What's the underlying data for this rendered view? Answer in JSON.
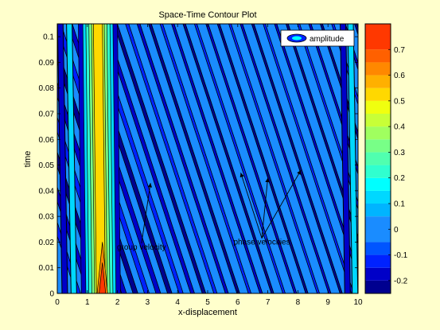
{
  "chart_data": {
    "type": "contour",
    "title": "Space-Time Contour Plot",
    "xlabel": "x-displacement",
    "ylabel": "time",
    "xlim": [
      0,
      10
    ],
    "ylim": [
      0,
      0.105
    ],
    "x_ticks": [
      "0",
      "1",
      "2",
      "3",
      "4",
      "5",
      "6",
      "7",
      "8",
      "9",
      "10"
    ],
    "y_ticks": [
      "0",
      "0.01",
      "0.02",
      "0.03",
      "0.04",
      "0.05",
      "0.06",
      "0.07",
      "0.08",
      "0.09",
      "0.1"
    ],
    "legend": {
      "entries": [
        "amplitude"
      ],
      "placement": "top-right"
    },
    "colorbar": {
      "ticks": [
        "-0.2",
        "-0.1",
        "0",
        "0.1",
        "0.2",
        "0.3",
        "0.4",
        "0.5",
        "0.6",
        "0.7"
      ],
      "range": [
        -0.25,
        0.8
      ],
      "levels": [
        {
          "from": -0.25,
          "to": -0.2,
          "color": "#00008f"
        },
        {
          "from": -0.2,
          "to": -0.15,
          "color": "#0000c8"
        },
        {
          "from": -0.15,
          "to": -0.1,
          "color": "#0022ff"
        },
        {
          "from": -0.1,
          "to": -0.05,
          "color": "#0055ff"
        },
        {
          "from": -0.05,
          "to": 0.05,
          "color": "#1a8cff"
        },
        {
          "from": 0.05,
          "to": 0.1,
          "color": "#00b4ff"
        },
        {
          "from": 0.1,
          "to": 0.15,
          "color": "#00d8ff"
        },
        {
          "from": 0.15,
          "to": 0.2,
          "color": "#00ffff"
        },
        {
          "from": 0.2,
          "to": 0.25,
          "color": "#30ffcf"
        },
        {
          "from": 0.25,
          "to": 0.3,
          "color": "#50ffaf"
        },
        {
          "from": 0.3,
          "to": 0.35,
          "color": "#78ff87"
        },
        {
          "from": 0.35,
          "to": 0.4,
          "color": "#a0ff5f"
        },
        {
          "from": 0.4,
          "to": 0.45,
          "color": "#c8ff37"
        },
        {
          "from": 0.45,
          "to": 0.5,
          "color": "#f0ff0f"
        },
        {
          "from": 0.5,
          "to": 0.55,
          "color": "#ffd800"
        },
        {
          "from": 0.55,
          "to": 0.6,
          "color": "#ffb000"
        },
        {
          "from": 0.6,
          "to": 0.65,
          "color": "#ff8800"
        },
        {
          "from": 0.65,
          "to": 0.7,
          "color": "#ff6000"
        },
        {
          "from": 0.7,
          "to": 0.8,
          "color": "#ff3800"
        }
      ]
    },
    "annotations": [
      {
        "text": "group velocity",
        "tail": [
          2.8,
          0.017
        ],
        "heads": [
          [
            3.1,
            0.043
          ]
        ]
      },
      {
        "text": "phase velocities",
        "tail": [
          6.8,
          0.019
        ],
        "heads": [
          [
            6.1,
            0.047
          ],
          [
            7.0,
            0.045
          ],
          [
            8.1,
            0.048
          ]
        ]
      }
    ]
  },
  "colors": {
    "figure_bg": "#ffffcc",
    "plot_bg": "#1a8cff"
  }
}
